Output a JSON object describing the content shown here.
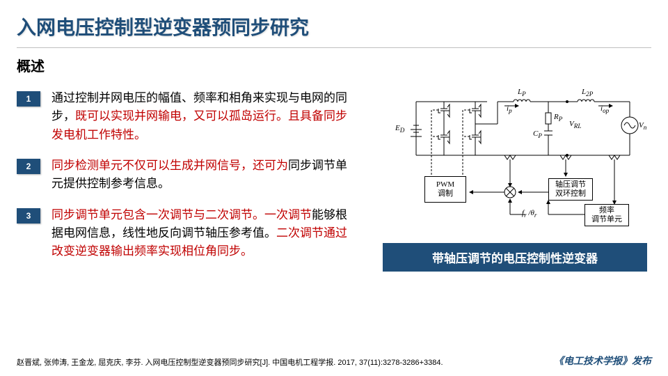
{
  "title": "入网电压控制型逆变器预同步研究",
  "subtitle": "概述",
  "items": [
    {
      "num": "1",
      "parts": [
        {
          "t": "通过控制并网电压的幅值、频率和相角来实现与电网的同步，",
          "hl": false
        },
        {
          "t": "既可以实现并网输电，又可以孤岛运行。且具备同步发电机工作特性。",
          "hl": true
        }
      ]
    },
    {
      "num": "2",
      "parts": [
        {
          "t": "同步检测单元不仅可以生成并网信号，还可为",
          "hl": true
        },
        {
          "t": "同步调节单元提供控制参考信息。",
          "hl": false
        }
      ]
    },
    {
      "num": "3",
      "parts": [
        {
          "t": "同步调节单元包含一次调节与二次调节。一次调节",
          "hl": true
        },
        {
          "t": "能够根据电网信息，线性地反向调节轴压参考值。",
          "hl": false
        },
        {
          "t": "二次调节通过改变逆变器输出频率实现相位角同步。",
          "hl": true
        }
      ]
    }
  ],
  "caption": "带轴压调节的电压控制性逆变器",
  "citation": "赵晋斌, 张帅涛, 王金龙, 屈克庆, 李芬. 入网电压控制型逆变器预同步研究[J]. 中国电机工程学报. 2017, 37(11):3278-3286+3384.",
  "journal": "《电工技术学报》发布",
  "diagram": {
    "labels": {
      "ED": "E_D",
      "LP": "L_P",
      "L2P": "L_2P",
      "ip": "i_p",
      "iop": "i_op",
      "RP": "R_P",
      "CP": "C_P",
      "VRL": "V_RL",
      "Vn": "V_n",
      "f": "f_r /θ_r"
    },
    "boxes": {
      "pwm": "PWM\n调制",
      "axCtrl": "轴压调节\n双环控制",
      "freq": "频率\n调节单元"
    },
    "colors": {
      "stroke": "#000000",
      "dash": "#000000",
      "bg": "#ffffff"
    }
  }
}
